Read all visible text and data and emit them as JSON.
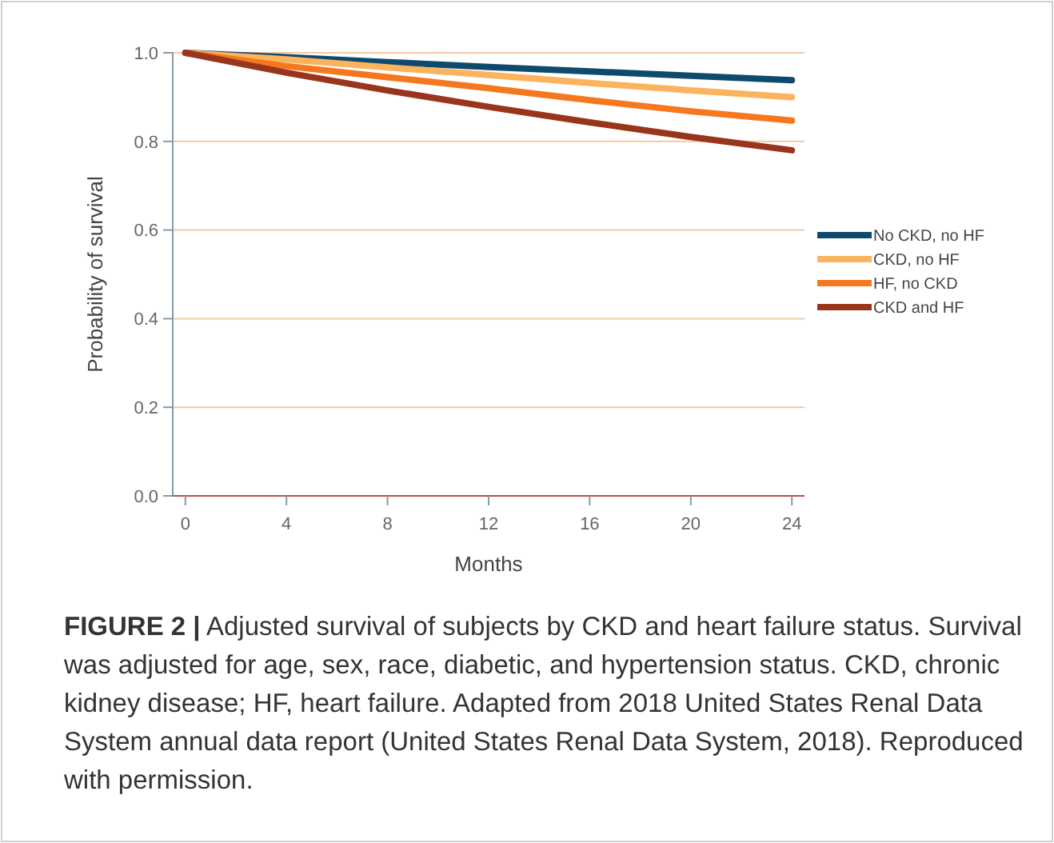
{
  "chart_data": {
    "type": "line",
    "xlabel": "Months",
    "ylabel": "Probability of survival",
    "x": [
      0,
      4,
      8,
      12,
      16,
      20,
      24
    ],
    "series": [
      {
        "name": "No CKD, no HF",
        "color": "#0e4a6b",
        "values": [
          1,
          0.99,
          0.979,
          0.968,
          0.958,
          0.948,
          0.938
        ]
      },
      {
        "name": "CKD, no HF",
        "color": "#fbb35e",
        "values": [
          1,
          0.985,
          0.967,
          0.95,
          0.932,
          0.915,
          0.9
        ]
      },
      {
        "name": "HF, no CKD",
        "color": "#f5781e",
        "values": [
          1,
          0.97,
          0.945,
          0.92,
          0.893,
          0.868,
          0.847
        ]
      },
      {
        "name": "CKD and HF",
        "color": "#98351c",
        "values": [
          1,
          0.955,
          0.915,
          0.878,
          0.843,
          0.81,
          0.78
        ]
      }
    ],
    "xlim": [
      -0.5,
      24.5
    ],
    "xticks": [
      0,
      4,
      8,
      12,
      16,
      20,
      24
    ],
    "ylim": [
      0,
      1
    ],
    "yticks": [
      {
        "value": 0,
        "label": "0.0"
      },
      {
        "value": 0.2,
        "label": "0.2"
      },
      {
        "value": 0.4,
        "label": "0.4"
      },
      {
        "value": 0.6,
        "label": "0.6"
      },
      {
        "value": 0.8,
        "label": "0.8"
      },
      {
        "value": 1,
        "label": "1.0"
      }
    ],
    "grid": "y",
    "legend": "right",
    "marker": "none",
    "line_style": "solid",
    "annotations": [
      "FIGURE 2 | Adjusted survival of subjects by CKD and heart failure status. Survival was adjusted for age, sex, race, diabetic, and hypertension status. CKD, chronic kidney disease; HF, heart failure. Adapted from 2018 United States Renal Data System annual data report (United States Renal Data System, 2018). Reproduced with permission."
    ]
  }
}
